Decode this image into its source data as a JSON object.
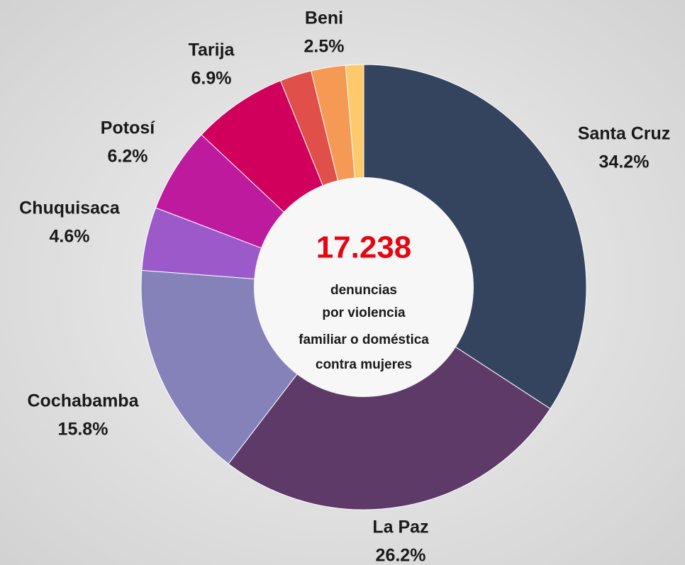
{
  "chart_data": {
    "type": "donut",
    "categories": [
      "Santa Cruz",
      "La Paz",
      "Cochabamba",
      "Chuquisaca",
      "Potosí",
      "Tarija",
      null,
      "Beni",
      null
    ],
    "values": [
      34.2,
      26.2,
      15.8,
      4.6,
      6.2,
      6.9,
      2.3,
      2.5,
      1.3
    ],
    "value_labels": [
      "34.2%",
      "26.2%",
      "15.8%",
      "4.6%",
      "6.2%",
      "6.9%",
      null,
      "2.5%",
      null
    ],
    "colors": [
      "#34435e",
      "#5e3a68",
      "#8482b8",
      "#9b59c9",
      "#be1a9e",
      "#d1005c",
      "#e04f4a",
      "#f59a55",
      "#fdc96a"
    ],
    "center_title": "17.238",
    "center_text": [
      "denuncias",
      "por violencia",
      "familiar o doméstica",
      "contra mujeres"
    ]
  }
}
